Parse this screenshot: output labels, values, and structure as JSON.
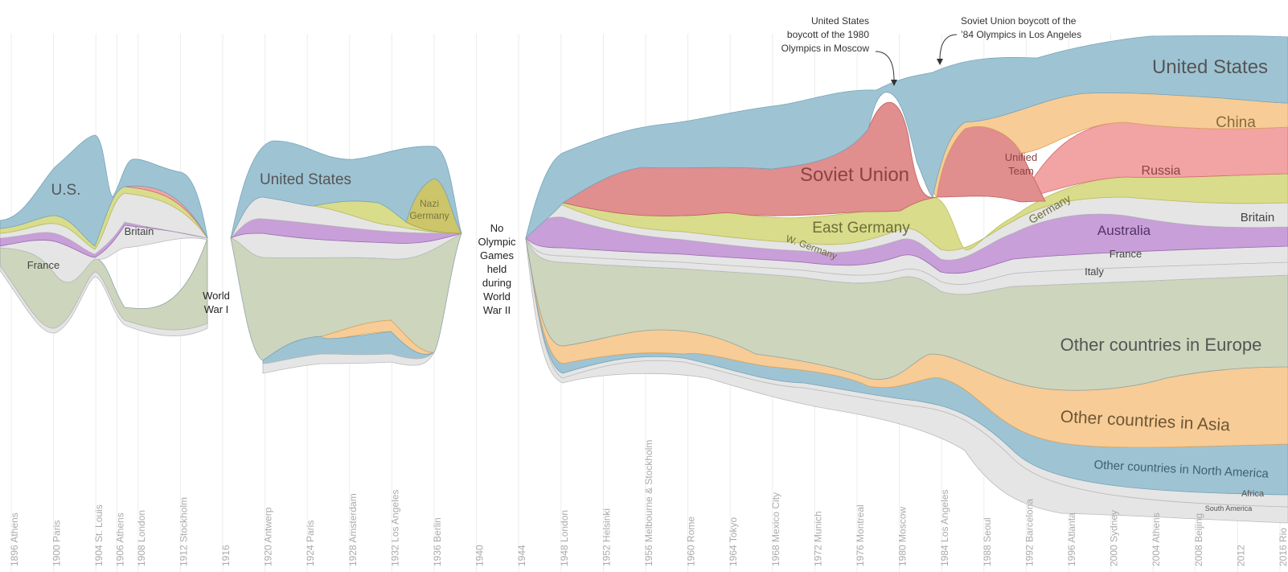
{
  "chart_data": {
    "type": "area",
    "ticks": [
      "1896 Athens",
      "1900 Paris",
      "1904 St. Louis",
      "1906 Athens",
      "1908 London",
      "1912 Stockholm",
      "1916",
      "1920 Antwerp",
      "1924 Paris",
      "1928 Amsterdam",
      "1932 Los Angeles",
      "1936 Berlin",
      "1940",
      "1944",
      "1948 London",
      "1952 Helsinki",
      "1956 Melbourne & Stockholm",
      "1960 Rome",
      "1964 Tokyo",
      "1968 Mexico City",
      "1972 Munich",
      "1976 Montreal",
      "1980 Moscow",
      "1984 Los Angeles",
      "1988 Seoul",
      "1992 Barcelona",
      "1996 Atlanta",
      "2000 Sydney",
      "2004 Athens",
      "2008 Beijing",
      "2012",
      "2016 Rio"
    ],
    "series": [
      {
        "name": "United States",
        "color": "#9ec4d4"
      },
      {
        "name": "China",
        "color": "#f7cc96"
      },
      {
        "name": "Soviet Union",
        "color": "#e08e8e"
      },
      {
        "name": "Unified Team",
        "color": "#e08e8e"
      },
      {
        "name": "Russia",
        "color": "#f2a3a3"
      },
      {
        "name": "Nazi Germany",
        "color": "#cdc56a"
      },
      {
        "name": "East Germany",
        "color": "#d9dc8a"
      },
      {
        "name": "W. Germany",
        "color": "#d9dc8a"
      },
      {
        "name": "Germany",
        "color": "#d9dc8a"
      },
      {
        "name": "Britain",
        "color": "#e5e5e5"
      },
      {
        "name": "Australia",
        "color": "#c89fd8"
      },
      {
        "name": "France",
        "color": "#e5e5e5"
      },
      {
        "name": "Italy",
        "color": "#e5e5e5"
      },
      {
        "name": "Other countries in Europe",
        "color": "#cdd5bd"
      },
      {
        "name": "Other countries in Asia",
        "color": "#f7cc96"
      },
      {
        "name": "Other countries in North America",
        "color": "#9ec4d4"
      },
      {
        "name": "Africa",
        "color": "#e5e5e5"
      },
      {
        "name": "South America",
        "color": "#e5e5e5"
      }
    ],
    "stream_labels": {
      "us_short": "U.S.",
      "britain": "Britain",
      "france": "France",
      "united_states": "United States",
      "nazi_germany_1": "Nazi",
      "nazi_germany_2": "Germany",
      "soviet_union": "Soviet Union",
      "east_germany": "East Germany",
      "w_germany": "W. Germany",
      "unified_team_1": "Unified",
      "unified_team_2": "Team",
      "germany": "Germany",
      "china": "China",
      "russia": "Russia",
      "australia": "Australia",
      "italy": "Italy",
      "other_europe": "Other countries in Europe",
      "other_asia": "Other countries in Asia",
      "other_na": "Other countries in North America",
      "africa": "Africa",
      "south_america": "South America"
    },
    "gap_labels": {
      "ww1": [
        "World",
        "War I"
      ],
      "ww2": [
        "No",
        "Olympic",
        "Games",
        "held",
        "during",
        "World",
        "War II"
      ]
    },
    "annotations": {
      "boycott_1980": [
        "United States",
        "boycott of the 1980",
        "Olympics in Moscow"
      ],
      "boycott_1984": [
        "Soviet Union boycott of the",
        "’84 Olympics in Los Angeles"
      ]
    }
  }
}
